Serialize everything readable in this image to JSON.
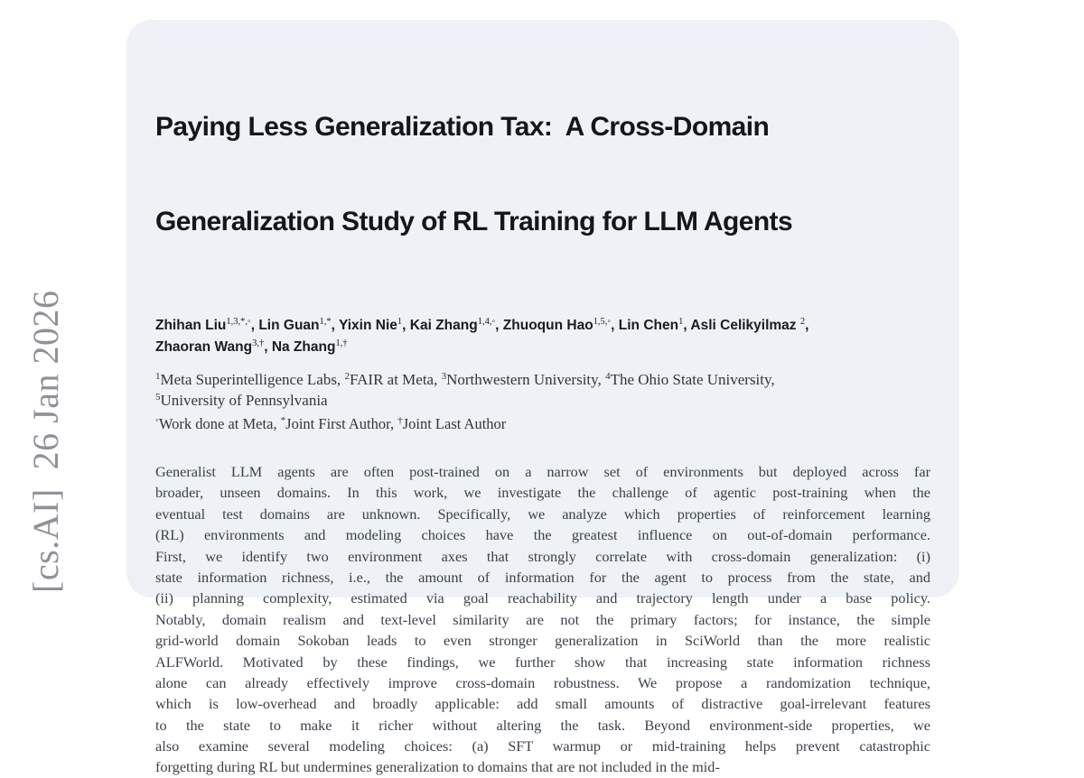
{
  "page": {
    "background": "#ffffff",
    "card_background": "#eef1f5"
  },
  "watermark": {
    "text": "[cs.AI]  26 Jan 2026",
    "color": "#8f9298"
  },
  "paper": {
    "title_lines": [
      "Paying Less Generalization Tax:  A Cross-Domain",
      "Generalization Study of RL Training for LLM Agents"
    ],
    "author_separator": ", ",
    "author_lines": [
      [
        {
          "name": "Zhihan Liu",
          "sup": "1,3,*,◦"
        },
        {
          "name": "Lin Guan",
          "sup": "1,*"
        },
        {
          "name": "Yixin Nie",
          "sup": "1"
        },
        {
          "name": "Kai Zhang",
          "sup": "1,4,◦"
        },
        {
          "name": "Zhuoqun Hao",
          "sup": "1,5,◦"
        },
        {
          "name": "Lin Chen",
          "sup": "1"
        },
        {
          "name": "Asli Celikyilmaz ",
          "sup": "2"
        }
      ],
      [
        {
          "name": "Zhaoran Wang",
          "sup": "3,†"
        },
        {
          "name": "Na Zhang",
          "sup": "1,†"
        }
      ]
    ],
    "affiliation_lines": [
      [
        {
          "sup": "1",
          "text": "Meta Superintelligence Labs, "
        },
        {
          "sup": "2",
          "text": "FAIR at Meta, "
        },
        {
          "sup": "3",
          "text": "Northwestern University, "
        },
        {
          "sup": "4",
          "text": "The Ohio State University,"
        }
      ],
      [
        {
          "sup": "5",
          "text": "University of Pennsylvania"
        }
      ]
    ],
    "note_line": [
      {
        "sup": "◦",
        "text": "Work done at Meta, "
      },
      {
        "sup": "*",
        "text": "Joint First Author, "
      },
      {
        "sup": "†",
        "text": "Joint Last Author"
      }
    ],
    "abstract_lines": [
      "Generalist LLM agents are often post-trained on a narrow set of environments but deployed across far",
      "broader, unseen domains. In this work, we investigate the challenge of agentic post-training when the",
      "eventual test domains are unknown. Specifically, we analyze which properties of reinforcement learning",
      "(RL) environments and modeling choices have the greatest influence on out-of-domain performance.",
      "First, we identify two environment axes that strongly correlate with cross-domain generalization: (i)",
      "state information richness, i.e., the amount of information for the agent to process from the state, and",
      "(ii) planning complexity, estimated via goal reachability and trajectory length under a base policy.",
      "Notably, domain realism and text-level similarity are not the primary factors; for instance, the simple",
      "grid-world domain Sokoban leads to even stronger generalization in SciWorld than the more realistic",
      "ALFWorld. Motivated by these findings, we further show that increasing state information richness",
      "alone can already effectively improve cross-domain robustness. We propose a randomization technique,",
      "which is low-overhead and broadly applicable: add small amounts of distractive goal-irrelevant features",
      "to the state to make it richer without altering the task. Beyond environment-side properties, we",
      "also examine several modeling choices: (a) SFT warmup or mid-training helps prevent catastrophic",
      "forgetting during RL but undermines generalization to domains that are not included in the mid-"
    ]
  }
}
